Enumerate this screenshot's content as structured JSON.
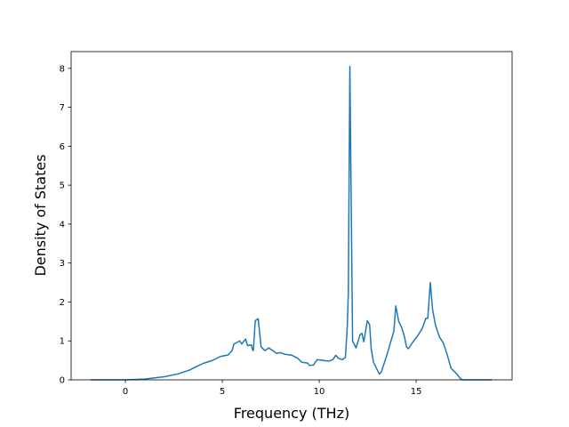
{
  "chart_data": {
    "type": "line",
    "x_label": "Frequency (THz)",
    "y_label": "Density of States",
    "x": [
      -1.79,
      0,
      1,
      2,
      2.7,
      3.3,
      3.7,
      4.0,
      4.5,
      4.9,
      5.3,
      5.5,
      5.6,
      5.9,
      6.0,
      6.2,
      6.3,
      6.5,
      6.55,
      6.6,
      6.7,
      6.85,
      7.0,
      7.2,
      7.4,
      7.6,
      7.8,
      8.0,
      8.2,
      8.6,
      8.9,
      9.1,
      9.4,
      9.5,
      9.7,
      9.9,
      10.2,
      10.5,
      10.7,
      10.85,
      11.0,
      11.2,
      11.35,
      11.45,
      11.5,
      11.58,
      11.72,
      11.9,
      12.1,
      12.2,
      12.3,
      12.48,
      12.6,
      12.68,
      12.8,
      13.0,
      13.1,
      13.2,
      13.5,
      13.7,
      13.85,
      13.95,
      14.1,
      14.25,
      14.4,
      14.5,
      14.6,
      14.8,
      15.1,
      15.3,
      15.5,
      15.6,
      15.73,
      15.85,
      16.0,
      16.2,
      16.4,
      16.6,
      16.8,
      17.1,
      17.3,
      17.4,
      18.9
    ],
    "values": [
      0,
      0,
      0.02,
      0.08,
      0.15,
      0.25,
      0.35,
      0.42,
      0.5,
      0.6,
      0.64,
      0.75,
      0.92,
      1.0,
      0.92,
      1.05,
      0.88,
      0.9,
      0.78,
      0.75,
      1.52,
      1.57,
      0.85,
      0.75,
      0.82,
      0.75,
      0.68,
      0.7,
      0.66,
      0.63,
      0.55,
      0.45,
      0.43,
      0.37,
      0.38,
      0.52,
      0.5,
      0.48,
      0.52,
      0.63,
      0.55,
      0.52,
      0.58,
      1.4,
      2.2,
      8.05,
      1.0,
      0.82,
      1.15,
      1.2,
      0.98,
      1.52,
      1.42,
      0.8,
      0.45,
      0.25,
      0.15,
      0.2,
      0.65,
      1.0,
      1.25,
      1.9,
      1.5,
      1.35,
      1.1,
      0.85,
      0.8,
      0.95,
      1.15,
      1.3,
      1.58,
      1.58,
      2.5,
      1.8,
      1.4,
      1.1,
      0.95,
      0.65,
      0.3,
      0.15,
      0.02,
      0,
      0
    ],
    "color": "#1f77b4",
    "xlim": [
      -2.8,
      19.95
    ],
    "xticks": [
      0,
      5,
      10,
      15
    ],
    "ylim": [
      0,
      8.43
    ],
    "yticks": [
      0,
      1,
      2,
      3,
      4,
      5,
      6,
      7,
      8
    ],
    "grid": false
  }
}
